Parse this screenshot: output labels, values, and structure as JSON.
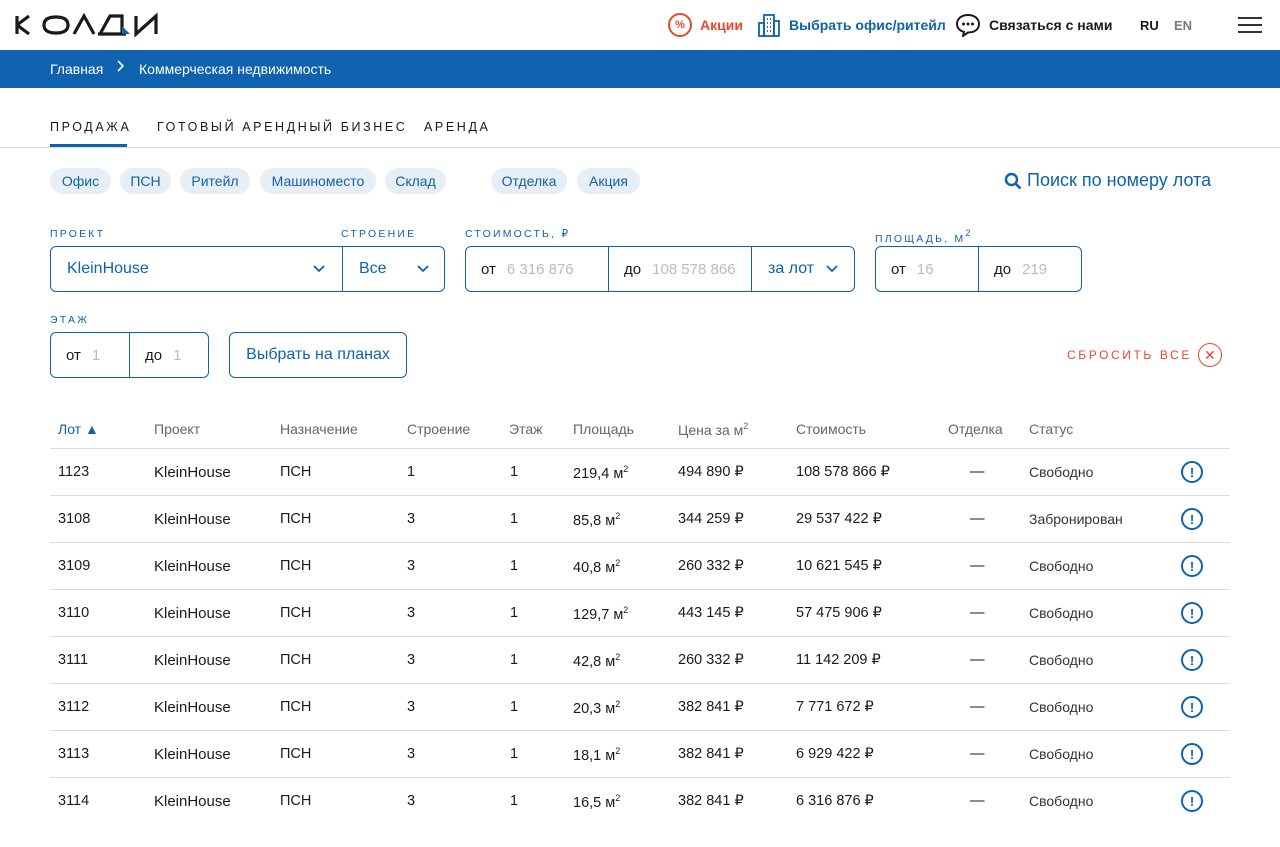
{
  "brand": {
    "logo_text": "КОЛДИ",
    "accent": "#0f62ad",
    "alert": "#e8472b"
  },
  "header": {
    "promo": "Акции",
    "office": "Выбрать офис/ритейл",
    "contact": "Связаться с нами",
    "lang_ru": "RU",
    "lang_en": "EN",
    "promo_icon": "percent-icon",
    "office_icon": "buildings-icon",
    "contact_icon": "chat-icon",
    "menu_icon": "hamburger-icon"
  },
  "breadcrumb": {
    "home": "Главная",
    "separator": ">",
    "current": "Коммерческая недвижимость"
  },
  "tabs": [
    "ПРОДАЖА",
    "ГОТОВЫЙ АРЕНДНЫЙ БИЗНЕС",
    "АРЕНДА"
  ],
  "chips": [
    "Офис",
    "ПСН",
    "Ритейл",
    "Машиноместо",
    "Склад",
    "Отделка",
    "Акция"
  ],
  "lot_search": "Поиск по номеру лота",
  "filters": {
    "project_label": "ПРОЕКТ",
    "project_value": "KleinHouse",
    "building_label": "СТРОЕНИЕ",
    "building_value": "Все",
    "price_label": "СТОИМОСТЬ, ₽",
    "from": "от",
    "to": "до",
    "price_from": "6 316 876",
    "price_to": "108 578 866",
    "price_mode": "за лот",
    "area_label": "ПЛОЩАДЬ, М",
    "area_from": "16",
    "area_to": "219",
    "floor_label": "ЭТАЖ",
    "floor_from": "1",
    "floor_to": "1",
    "plans_button": "Выбрать на планах",
    "reset": "СБРОСИТЬ ВСЕ"
  },
  "table": {
    "headers": [
      "Лот",
      "Проект",
      "Назначение",
      "Строение",
      "Этаж",
      "Площадь",
      "Цена за м",
      "Стоимость",
      "Отделка",
      "Статус"
    ],
    "rows": [
      [
        "1123",
        "KleinHouse",
        "ПСН",
        "1",
        "1",
        "219,4 м",
        "494 890 ₽",
        "108 578 866 ₽",
        "—",
        "Свободно"
      ],
      [
        "3108",
        "KleinHouse",
        "ПСН",
        "3",
        "1",
        "85,8 м",
        "344 259 ₽",
        "29 537 422 ₽",
        "—",
        "Забронирован"
      ],
      [
        "3109",
        "KleinHouse",
        "ПСН",
        "3",
        "1",
        "40,8 м",
        "260 332 ₽",
        "10 621 545 ₽",
        "—",
        "Свободно"
      ],
      [
        "3110",
        "KleinHouse",
        "ПСН",
        "3",
        "1",
        "129,7 м",
        "443 145 ₽",
        "57 475 906 ₽",
        "—",
        "Свободно"
      ],
      [
        "3111",
        "KleinHouse",
        "ПСН",
        "3",
        "1",
        "42,8 м",
        "260 332 ₽",
        "11 142 209 ₽",
        "—",
        "Свободно"
      ],
      [
        "3112",
        "KleinHouse",
        "ПСН",
        "3",
        "1",
        "20,3 м",
        "382 841 ₽",
        "7 771 672 ₽",
        "—",
        "Свободно"
      ],
      [
        "3113",
        "KleinHouse",
        "ПСН",
        "3",
        "1",
        "18,1 м",
        "382 841 ₽",
        "6 929 422 ₽",
        "—",
        "Свободно"
      ],
      [
        "3114",
        "KleinHouse",
        "ПСН",
        "3",
        "1",
        "16,5 м",
        "382 841 ₽",
        "6 316 876 ₽",
        "—",
        "Свободно"
      ]
    ]
  },
  "superscript": "2",
  "info_glyph": "!"
}
